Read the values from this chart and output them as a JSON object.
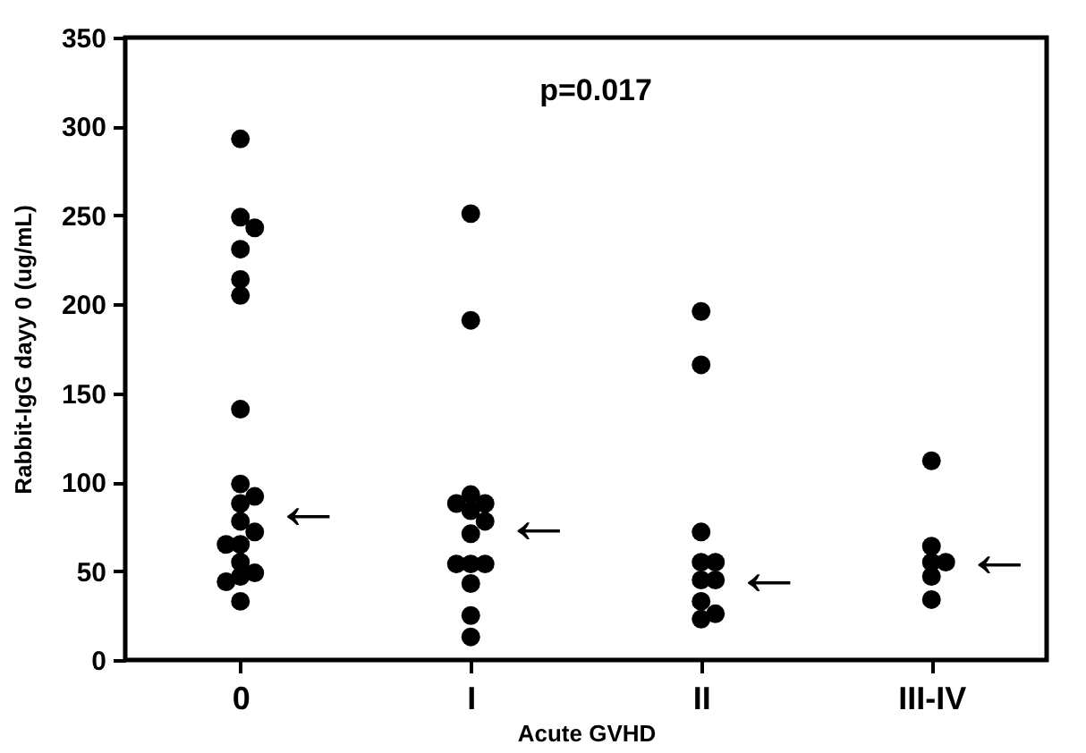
{
  "chart_data": {
    "type": "scatter",
    "xlabel": "Acute GVHD",
    "ylabel": "Rabbit-IgG dayy 0 (ug/mL)",
    "categories": [
      "0",
      "I",
      "II",
      "III-IV"
    ],
    "series": [
      {
        "color": "#000000",
        "x": [
          "0",
          "0",
          "0",
          "0",
          "0",
          "0",
          "0",
          "0",
          "0",
          "0",
          "0",
          "0",
          "0",
          "0",
          "0",
          "0",
          "0",
          "0",
          "0",
          "I",
          "I",
          "I",
          "I",
          "I",
          "I",
          "I",
          "I",
          "I",
          "I",
          "I",
          "I",
          "I",
          "I",
          "II",
          "II",
          "II",
          "II",
          "II",
          "II",
          "II",
          "II",
          "II",
          "II",
          "III-IV",
          "III-IV",
          "III-IV",
          "III-IV",
          "III-IV",
          "III-IV"
        ],
        "values": [
          293,
          249,
          243,
          231,
          214,
          205,
          141,
          99,
          92,
          88,
          78,
          72,
          65,
          65,
          55,
          49,
          47,
          44,
          33,
          251,
          191,
          93,
          88,
          88,
          84,
          78,
          71,
          54,
          54,
          54,
          43,
          25,
          13,
          196,
          166,
          72,
          55,
          55,
          45,
          45,
          33,
          26,
          23,
          112,
          64,
          55,
          55,
          47,
          34
        ]
      }
    ],
    "marker": "circle",
    "ylim": [
      0,
      350
    ],
    "yticks": [
      0,
      50,
      100,
      150,
      200,
      250,
      300,
      350
    ],
    "grid": false,
    "annotations": [
      "p=0.017",
      {
        "text": "←",
        "x": "0",
        "y": 84
      },
      {
        "text": "←",
        "x": "I",
        "y": 76
      },
      {
        "text": "←",
        "x": "II",
        "y": 47
      },
      {
        "text": "←",
        "x": "III-IV",
        "y": 57
      }
    ]
  }
}
